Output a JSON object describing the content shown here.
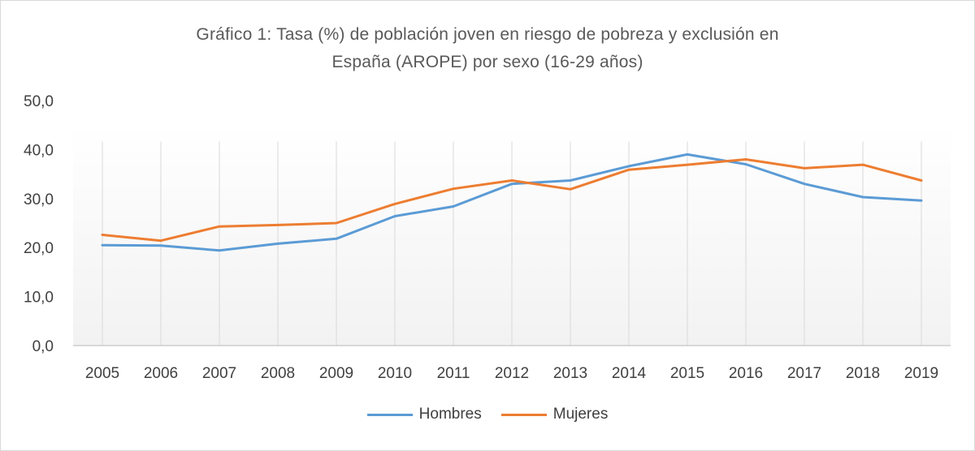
{
  "chart_data": {
    "type": "line",
    "title_line1": "Gráfico 1: Tasa (%) de población joven en riesgo de pobreza y exclusión en",
    "title_line2": "España (AROPE) por sexo (16-29 años)",
    "xlabel": "",
    "ylabel": "",
    "ylim": [
      0,
      50
    ],
    "yticks": [
      "0,0",
      "10,0",
      "20,0",
      "30,0",
      "40,0",
      "50,0"
    ],
    "ytick_values": [
      0,
      10,
      20,
      30,
      40,
      50
    ],
    "grid": "vertical",
    "legend_position": "bottom",
    "categories": [
      "2005",
      "2006",
      "2007",
      "2008",
      "2009",
      "2010",
      "2011",
      "2012",
      "2013",
      "2014",
      "2015",
      "2016",
      "2017",
      "2018",
      "2019"
    ],
    "series": [
      {
        "name": "Hombres",
        "color": "#5b9bd5",
        "values": [
          20.5,
          20.4,
          19.4,
          20.8,
          21.8,
          26.4,
          28.4,
          33.0,
          33.7,
          36.6,
          39.0,
          37.0,
          33.0,
          30.3,
          29.6
        ]
      },
      {
        "name": "Mujeres",
        "color": "#ed7d31",
        "values": [
          22.6,
          21.4,
          24.3,
          24.6,
          25.0,
          28.9,
          32.0,
          33.7,
          31.9,
          35.9,
          36.9,
          38.0,
          36.2,
          36.9,
          33.7
        ]
      }
    ]
  }
}
